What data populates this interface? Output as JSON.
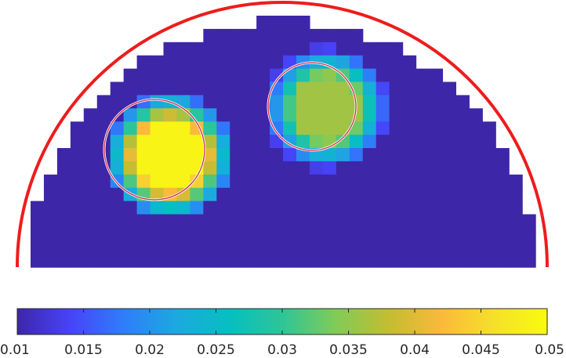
{
  "chart_data": {
    "type": "heatmap",
    "title": "",
    "xlabel": "",
    "ylabel": "",
    "domain": "half-disc",
    "grid_size": {
      "cols": 38,
      "rows": 19
    },
    "background_value": 0.01,
    "colormap": "parula",
    "colormap_stops": [
      "#3e26a8",
      "#4743f8",
      "#2f7dfa",
      "#1ca9df",
      "#06bfc1",
      "#2ec597",
      "#80cb58",
      "#c2bd32",
      "#fbb93b",
      "#f5e02a",
      "#f9fb0e"
    ],
    "color_range": [
      0.01,
      0.05
    ],
    "colorbar": {
      "orientation": "horizontal",
      "position": "bottom",
      "ticks": [
        0.01,
        0.015,
        0.02,
        0.025,
        0.03,
        0.035,
        0.04,
        0.045,
        0.05
      ],
      "tick_labels": [
        "0.01",
        "0.015",
        "0.02",
        "0.025",
        "0.03",
        "0.035",
        "0.04",
        "0.045",
        "0.05"
      ]
    },
    "inclusions": [
      {
        "name": "",
        "center_cell": [
          10.5,
          10.6
        ],
        "peak_value": 0.049,
        "radius_cells": 3.3
      },
      {
        "name": "",
        "center_cell": [
          22.3,
          7.0
        ],
        "peak_value": 0.036,
        "radius_cells": 3.2
      }
    ],
    "outline": {
      "shape": "semicircle",
      "color": "#ee1c1c"
    },
    "true_inclusion_outlines": {
      "count": 2,
      "shape": "circle",
      "color": "#c8304a"
    }
  }
}
